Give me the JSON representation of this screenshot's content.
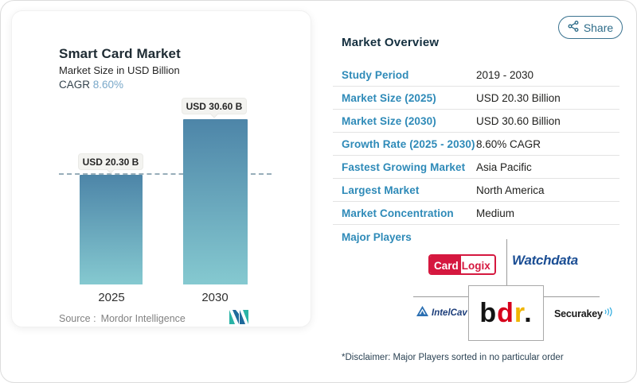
{
  "share": {
    "label": "Share"
  },
  "chart": {
    "title": "Smart Card Market",
    "subtitle": "Market Size in USD Billion",
    "cagr_label": "CAGR",
    "cagr_value": "8.60%",
    "source_label": "Source :",
    "source_value": "Mordor Intelligence"
  },
  "chart_data": {
    "type": "bar",
    "categories": [
      "2025",
      "2030"
    ],
    "values": [
      20.3,
      30.6
    ],
    "bar_labels": [
      "USD 20.30 B",
      "USD 30.60 B"
    ],
    "title": "Smart Card Market",
    "ylabel": "Market Size in USD Billion",
    "ylim": [
      0,
      33
    ],
    "reference_line": 20.3,
    "legend": "none",
    "grid": "off",
    "colors": {
      "bar_top": "#4d85a8",
      "bar_bottom": "#85c9d0",
      "reference_dash": "#97adb9"
    }
  },
  "overview": {
    "title": "Market Overview",
    "rows": [
      {
        "label": "Study Period",
        "value": "2019 - 2030"
      },
      {
        "label": "Market Size (2025)",
        "value": "USD 20.30 Billion"
      },
      {
        "label": "Market Size (2030)",
        "value": "USD 30.60 Billion"
      },
      {
        "label": "Growth Rate (2025 - 2030)",
        "value": "8.60% CAGR"
      },
      {
        "label": "Fastest Growing Market",
        "value": "Asia Pacific"
      },
      {
        "label": "Largest Market",
        "value": "North America"
      },
      {
        "label": "Market Concentration",
        "value": "Medium"
      }
    ],
    "major_players_label": "Major Players",
    "players": {
      "cardlogix_part1": "Card",
      "cardlogix_part2": "Logix",
      "watchdata": "Watchdata",
      "intelcav": "IntelCav",
      "bdr_b": "b",
      "bdr_d": "d",
      "bdr_r": "r",
      "bdr_dot": ".",
      "securakey": "Securakey"
    },
    "disclaimer": "*Disclaimer: Major Players sorted in no particular order"
  }
}
